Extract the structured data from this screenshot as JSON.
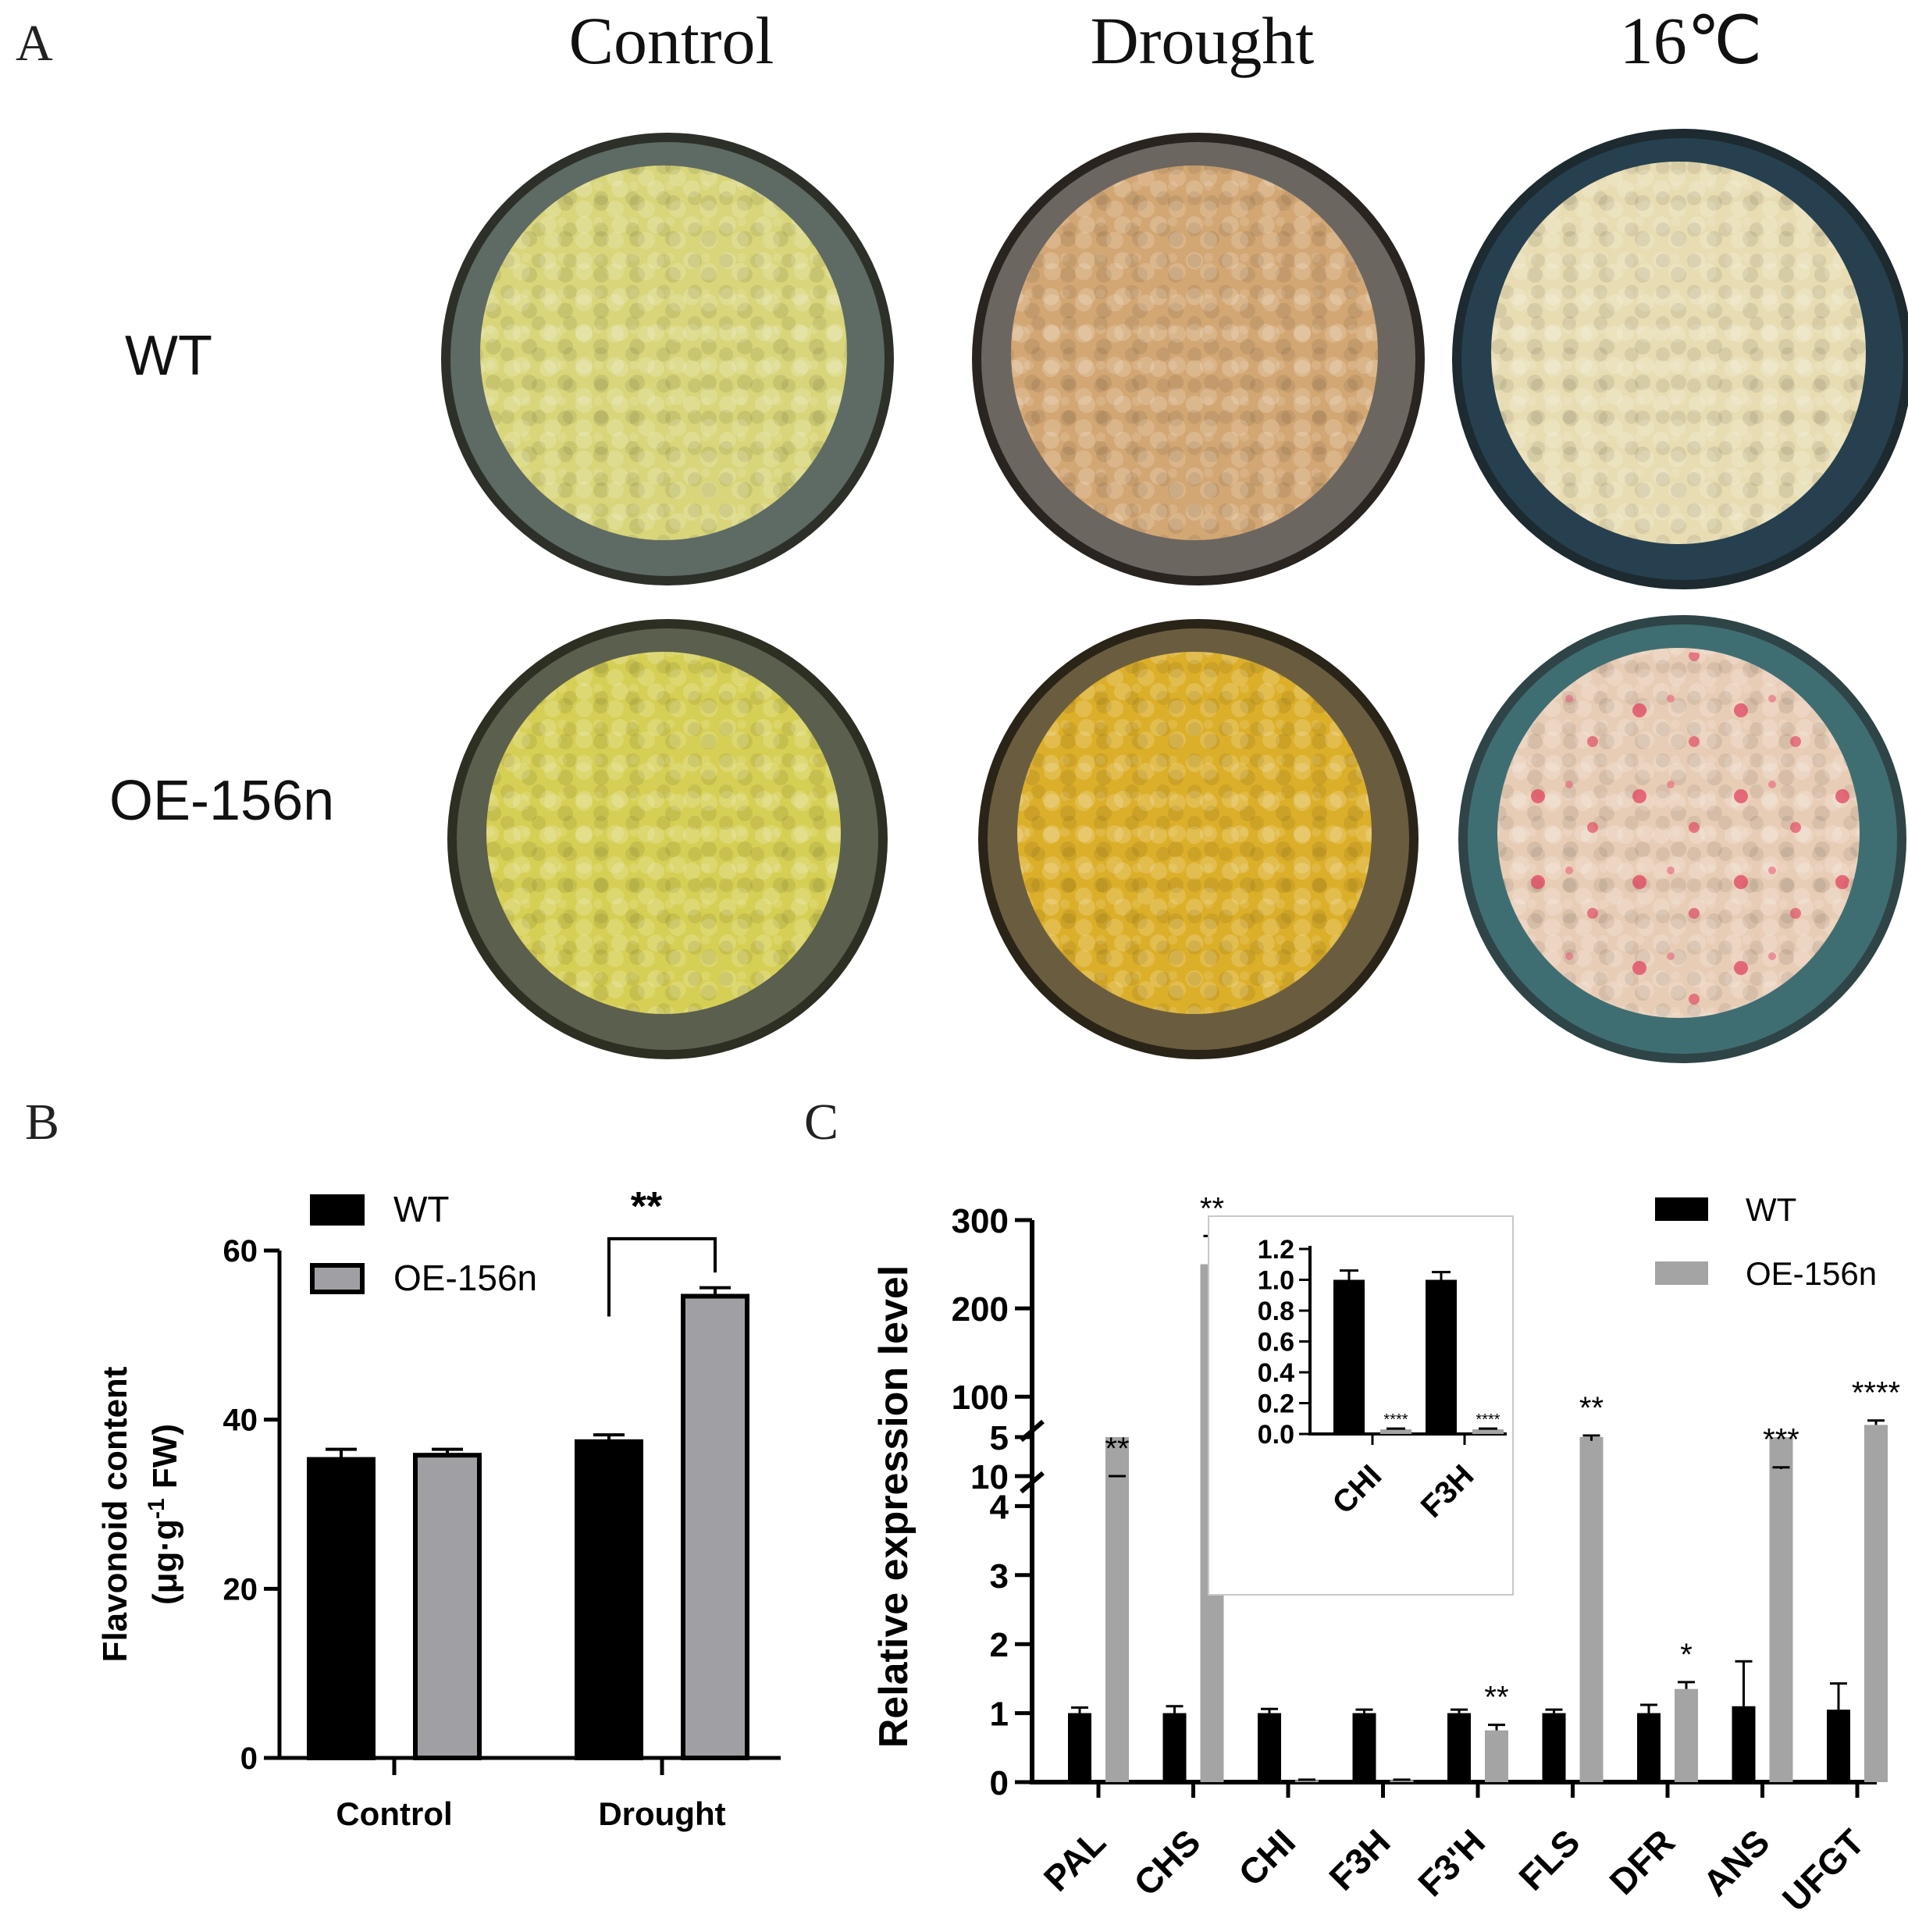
{
  "panel_a": {
    "letter": "A",
    "columns": [
      "Control",
      "Drought",
      "16℃"
    ],
    "rows": [
      "WT",
      "OE-156n"
    ],
    "dishes": [
      {
        "row": "WT",
        "column": "Control",
        "callus_color": "#d8d57a",
        "rim_color": "#2c3028",
        "medium_color": "#5e6a64"
      },
      {
        "row": "WT",
        "column": "Drought",
        "callus_color": "#d3a774",
        "rim_color": "#2a2420",
        "medium_color": "#6b6660"
      },
      {
        "row": "WT",
        "column": "16℃",
        "callus_color": "#e7dcb2",
        "rim_color": "#1d2a30",
        "medium_color": "#26404f"
      },
      {
        "row": "OE-156n",
        "column": "Control",
        "callus_color": "#d6cf55",
        "rim_color": "#2c2f22",
        "medium_color": "#5b5f4d"
      },
      {
        "row": "OE-156n",
        "column": "Drought",
        "callus_color": "#dcaf2a",
        "rim_color": "#2a2418",
        "medium_color": "#6a5d3f"
      },
      {
        "row": "OE-156n",
        "column": "16℃",
        "callus_color": "#e8cdb6",
        "rim_color": "#2f4447",
        "medium_color": "#3f6e72",
        "spot_color": "#e0445e"
      }
    ]
  },
  "panel_b": {
    "letter": "B",
    "chart_data": {
      "type": "bar",
      "categories": [
        "Control",
        "Drought"
      ],
      "series": [
        {
          "name": "WT",
          "values": [
            35.3,
            37.4
          ],
          "errors": [
            1.2,
            0.8
          ],
          "color": "#000000"
        },
        {
          "name": "OE-156n",
          "values": [
            35.8,
            54.6
          ],
          "errors": [
            0.7,
            1.0
          ],
          "color": "#a0a0a4"
        }
      ],
      "ylabel": "Flavonoid content",
      "ylabel_unit_prefix": "(μg·g",
      "ylabel_unit_sup": "-1",
      "ylabel_unit_suffix": " FW)",
      "ylim": [
        0,
        60
      ],
      "yticks": [
        "0",
        "20",
        "40",
        "60"
      ],
      "significance": [
        {
          "category": "Drought",
          "label": "**"
        }
      ],
      "legend_placement": "top-left"
    }
  },
  "panel_c": {
    "letter": "C",
    "chart_data": {
      "type": "bar",
      "categories": [
        "PAL",
        "CHS",
        "CHI",
        "F3H",
        "F3'H",
        "FLS",
        "DFR",
        "ANS",
        "UFGT"
      ],
      "series": [
        {
          "name": "WT",
          "values": [
            1.0,
            1.0,
            1.0,
            1.0,
            1.0,
            1.0,
            1.0,
            1.1,
            1.05
          ],
          "errors": [
            0.08,
            0.1,
            0.06,
            0.05,
            0.05,
            0.05,
            0.12,
            0.65,
            0.38
          ],
          "color": "#000000"
        },
        {
          "name": "OE-156n",
          "values": [
            9,
            250,
            0.03,
            0.03,
            0.75,
            50,
            1.35,
            18,
            68
          ],
          "errors": [
            0.5,
            32,
            0.005,
            0.005,
            0.08,
            6,
            0.1,
            2,
            5
          ],
          "color": "#a4a4a4"
        }
      ],
      "ylabel": "Relative expression level",
      "y_axis": "broken",
      "ylim_lower": [
        0,
        5
      ],
      "ylim_upper": [
        10,
        300
      ],
      "yticks_lower": [
        "0",
        "1",
        "2",
        "3",
        "4",
        "5"
      ],
      "yticks_upper": [
        "10",
        "100",
        "200",
        "300"
      ],
      "significance": [
        "**",
        "**",
        "",
        "",
        "**",
        "**",
        "*",
        "***",
        "****"
      ],
      "legend_placement": "top-right",
      "inset": {
        "categories": [
          "CHI",
          "F3H"
        ],
        "series": [
          {
            "name": "WT",
            "values": [
              1.0,
              1.0
            ],
            "errors": [
              0.06,
              0.05
            ]
          },
          {
            "name": "OE-156n",
            "values": [
              0.03,
              0.03
            ],
            "errors": [
              0.005,
              0.005
            ]
          }
        ],
        "ylim": [
          0,
          1.2
        ],
        "yticks": [
          "0.0",
          "0.2",
          "0.4",
          "0.6",
          "0.8",
          "1.0",
          "1.2"
        ],
        "significance": [
          "****",
          "****"
        ]
      }
    }
  }
}
